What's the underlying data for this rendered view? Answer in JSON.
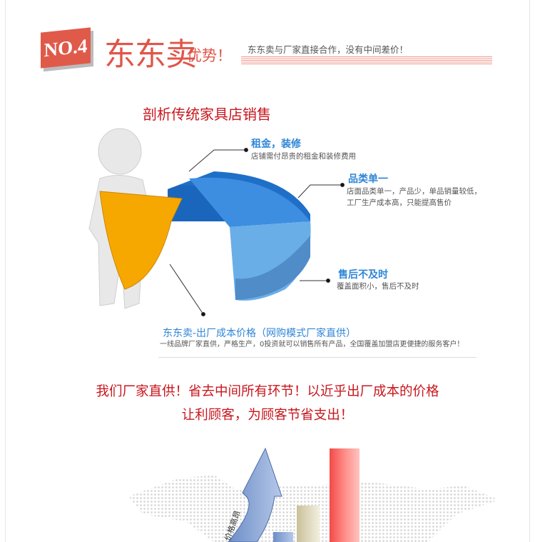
{
  "header": {
    "badge": "NO.4",
    "brand": "东东卖",
    "brand_suffix": "优势！",
    "slogan": "东东卖与厂家直接合作，没有中间差价！"
  },
  "analysis": {
    "title": "剖析传统家具店销售",
    "points": [
      {
        "label": "租金，装修",
        "desc": [
          "店铺需付昂贵的租金和装修费用"
        ]
      },
      {
        "label": "品类单一",
        "desc": [
          "店面品类单一，产品少，单品销量较低，",
          "工厂生产成本高，只能提高售价"
        ]
      },
      {
        "label": "售后不及时",
        "desc": [
          "覆盖面积小，售后不及时"
        ]
      }
    ],
    "advantage": {
      "label": "东东卖-出厂成本价格（网购模式厂家直供）",
      "desc": "一线品牌厂家直供，严格生产，0投资就可以销售所有产品，全国覆盖加盟店更便捷的服务客户！"
    }
  },
  "message": {
    "line1": "我们厂家直供！省去中间所有环节！以近乎出厂成本的价格",
    "line2": "让利顾客，为顾客节省支出！"
  },
  "graphic": {
    "arrow_text": "价格高昂"
  },
  "colors": {
    "brand_red": "#e05a4a",
    "headline_red": "#c8161d",
    "label_blue": "#2f86d6",
    "pie_orange": "#f7a800"
  }
}
